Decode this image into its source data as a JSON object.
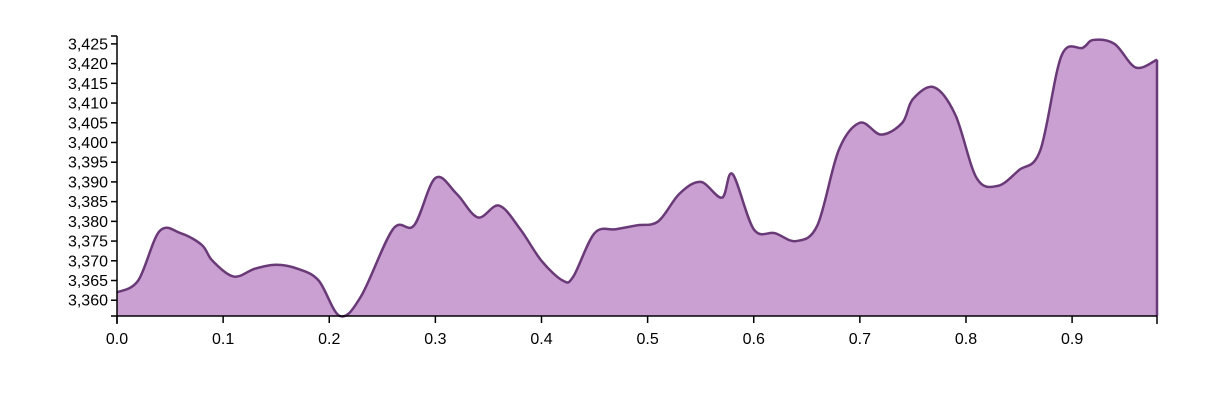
{
  "colors": {
    "area_fill": "#c9a0d1",
    "area_stroke": "#6a3a78",
    "axis": "#000000"
  },
  "chart_data": {
    "type": "area",
    "title": "",
    "xlabel": "",
    "ylabel": "",
    "xlim": [
      0.0,
      0.98
    ],
    "ylim": [
      3356,
      3427
    ],
    "grid": false,
    "legend": "none",
    "x_ticks": [
      {
        "value": 0.0,
        "label": "0.0"
      },
      {
        "value": 0.1,
        "label": "0.1"
      },
      {
        "value": 0.2,
        "label": "0.2"
      },
      {
        "value": 0.3,
        "label": "0.3"
      },
      {
        "value": 0.4,
        "label": "0.4"
      },
      {
        "value": 0.5,
        "label": "0.5"
      },
      {
        "value": 0.6,
        "label": "0.6"
      },
      {
        "value": 0.7,
        "label": "0.7"
      },
      {
        "value": 0.8,
        "label": "0.8"
      },
      {
        "value": 0.9,
        "label": "0.9"
      }
    ],
    "y_ticks": [
      {
        "value": 3360,
        "label": "3,360"
      },
      {
        "value": 3365,
        "label": "3,365"
      },
      {
        "value": 3370,
        "label": "3,370"
      },
      {
        "value": 3375,
        "label": "3,375"
      },
      {
        "value": 3380,
        "label": "3,380"
      },
      {
        "value": 3385,
        "label": "3,385"
      },
      {
        "value": 3390,
        "label": "3,390"
      },
      {
        "value": 3395,
        "label": "3,395"
      },
      {
        "value": 3400,
        "label": "3,400"
      },
      {
        "value": 3405,
        "label": "3,405"
      },
      {
        "value": 3410,
        "label": "3,410"
      },
      {
        "value": 3415,
        "label": "3,415"
      },
      {
        "value": 3420,
        "label": "3,420"
      },
      {
        "value": 3425,
        "label": "3,425"
      }
    ],
    "series": [
      {
        "x": [
          0.0,
          0.02,
          0.04,
          0.06,
          0.08,
          0.09,
          0.11,
          0.13,
          0.15,
          0.17,
          0.19,
          0.21,
          0.23,
          0.26,
          0.28,
          0.3,
          0.32,
          0.34,
          0.36,
          0.38,
          0.4,
          0.42,
          0.43,
          0.45,
          0.47,
          0.49,
          0.51,
          0.53,
          0.55,
          0.57,
          0.58,
          0.6,
          0.62,
          0.64,
          0.66,
          0.68,
          0.7,
          0.72,
          0.74,
          0.75,
          0.77,
          0.79,
          0.81,
          0.83,
          0.85,
          0.87,
          0.89,
          0.91,
          0.92,
          0.94,
          0.96,
          0.98
        ],
        "y": [
          3362,
          3365,
          3377.5,
          3377,
          3374,
          3370,
          3366,
          3368,
          3369,
          3368,
          3365,
          3356,
          3361,
          3378,
          3379,
          3391,
          3387,
          3381,
          3384,
          3378,
          3370,
          3365,
          3366,
          3377,
          3378,
          3379,
          3380,
          3387,
          3390,
          3386,
          3392,
          3378,
          3377,
          3375,
          3379,
          3398,
          3405,
          3402,
          3405,
          3411,
          3414,
          3407,
          3391,
          3389,
          3393,
          3398,
          3422,
          3424,
          3426,
          3425,
          3419,
          3421
        ]
      }
    ]
  }
}
